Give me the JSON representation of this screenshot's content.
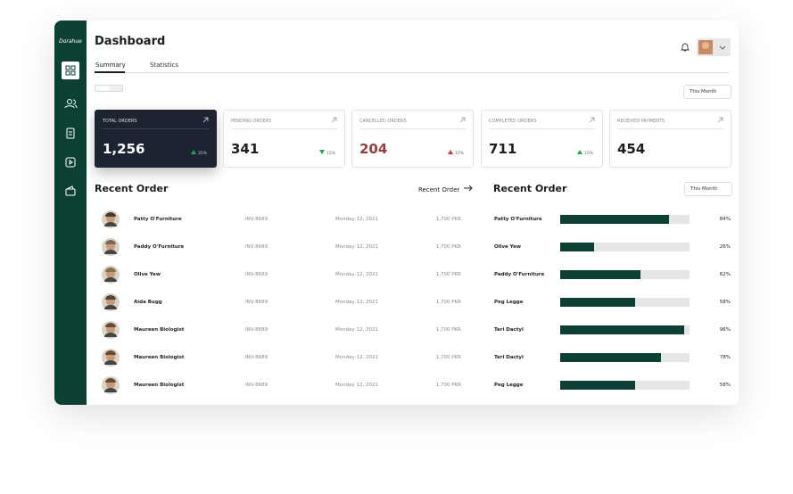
{
  "sidebar": {
    "logo": "Dorahue"
  },
  "header": {
    "title": "Dashboard",
    "tabs": [
      "Summary",
      "Statistics"
    ],
    "period": "This Month"
  },
  "cards": [
    {
      "label": "TOTAL ORDERS",
      "value": "1,256",
      "change": "35%",
      "trend": "up",
      "active": true
    },
    {
      "label": "PENDING ORDERS",
      "value": "341",
      "change": "15%",
      "trend": "down",
      "active": false
    },
    {
      "label": "CANCELLED ORDERS",
      "value": "204",
      "change": "10%",
      "trend": "up-bad",
      "active": false
    },
    {
      "label": "COMPLETED ORDERS",
      "value": "711",
      "change": "10%",
      "trend": "up",
      "active": false
    },
    {
      "label": "RECEIVED PAYMENTS",
      "value": "454",
      "active": false
    }
  ],
  "recent_orders": {
    "title": "Recent Order",
    "link": "Recent Order",
    "rows": [
      {
        "name": "Patty O'Furniture",
        "invoice": "INV-8689",
        "date": "Monday 12, 2021",
        "amount": "1,700 PKR"
      },
      {
        "name": "Paddy O'Furniture",
        "invoice": "INV-8689",
        "date": "Monday 12, 2021",
        "amount": "1,700 PKR"
      },
      {
        "name": "Olive Yew",
        "invoice": "INV-8689",
        "date": "Monday 12, 2021",
        "amount": "1,700 PKR"
      },
      {
        "name": "Aida Bugg",
        "invoice": "INV-8689",
        "date": "Monday 12, 2021",
        "amount": "1,700 PKR"
      },
      {
        "name": "Maureen Biologist",
        "invoice": "INV-8689",
        "date": "Monday 12, 2021",
        "amount": "1,700 PKR"
      },
      {
        "name": "Maureen Biologist",
        "invoice": "INV-8689",
        "date": "Monday 12, 2021",
        "amount": "1,700 PKR"
      },
      {
        "name": "Maureen Biologist",
        "invoice": "INV-8689",
        "date": "Monday 12, 2021",
        "amount": "1,700 PKR"
      }
    ]
  },
  "progress": {
    "title": "Recent Order",
    "period": "This Month",
    "rows": [
      {
        "name": "Patty O'Furniture",
        "value": 84,
        "label": "84%"
      },
      {
        "name": "Olive Yew",
        "value": 26,
        "label": "26%"
      },
      {
        "name": "Paddy O'Furniture",
        "value": 62,
        "label": "62%"
      },
      {
        "name": "Peg Legge",
        "value": 58,
        "label": "58%"
      },
      {
        "name": "Teri Dactyl",
        "value": 96,
        "label": "96%"
      },
      {
        "name": "Teri Dactyl",
        "value": 78,
        "label": "78%"
      },
      {
        "name": "Peg Legge",
        "value": 58,
        "label": "58%"
      }
    ]
  }
}
